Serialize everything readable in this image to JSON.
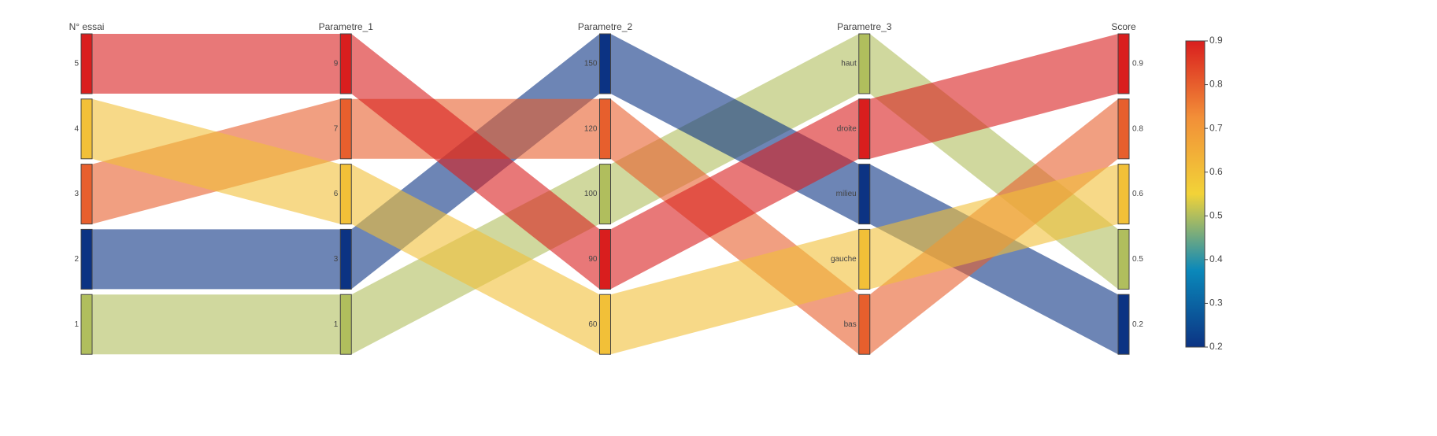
{
  "chart_data": {
    "type": "parcats",
    "dimensions": [
      {
        "label": "N° essai",
        "categories": [
          5,
          4,
          3,
          2,
          1
        ]
      },
      {
        "label": "Parametre_1",
        "categories": [
          9,
          7,
          6,
          3,
          1
        ]
      },
      {
        "label": "Parametre_2",
        "categories": [
          150,
          120,
          100,
          90,
          60
        ]
      },
      {
        "label": "Parametre_3",
        "categories": [
          "haut",
          "droite",
          "milieu",
          "gauche",
          "bas"
        ]
      },
      {
        "label": "Score",
        "categories": [
          0.9,
          0.8,
          0.6,
          0.5,
          0.2
        ]
      }
    ],
    "records": [
      [
        1,
        1,
        100,
        "haut",
        0.5
      ],
      [
        2,
        3,
        150,
        "milieu",
        0.2
      ],
      [
        3,
        7,
        120,
        "bas",
        0.8
      ],
      [
        4,
        6,
        60,
        "gauche",
        0.6
      ],
      [
        5,
        9,
        90,
        "droite",
        0.9
      ]
    ],
    "colorscale": [
      [
        0,
        "#0c3383"
      ],
      [
        0.25,
        "#0a88ba"
      ],
      [
        0.5,
        "#f2d338"
      ],
      [
        0.75,
        "#f28f38"
      ],
      [
        1,
        "#d91e1e"
      ]
    ],
    "colorlim": [
      0.2,
      0.9
    ],
    "colorticks": [
      0.2,
      0.3,
      0.4,
      0.5,
      0.6,
      0.7,
      0.8,
      0.9
    ]
  }
}
